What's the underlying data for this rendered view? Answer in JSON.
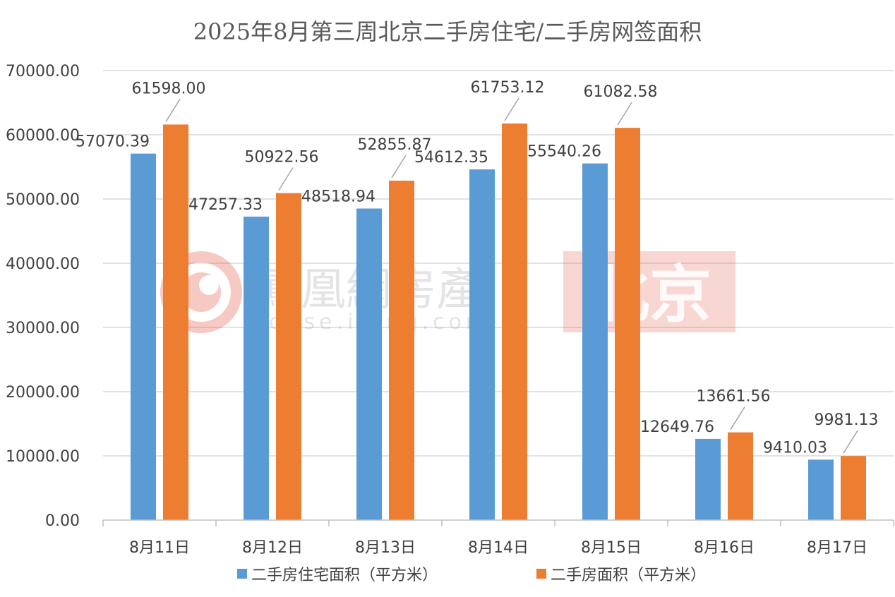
{
  "chart_data": {
    "type": "bar",
    "title": "2025年8月第三周北京二手房住宅/二手房网签面积",
    "categories": [
      "8月11日",
      "8月12日",
      "8月13日",
      "8月14日",
      "8月15日",
      "8月16日",
      "8月17日"
    ],
    "series": [
      {
        "name": "二手房住宅面积（平方米）",
        "color": "#5B9BD5",
        "values": [
          57070.39,
          47257.33,
          48518.94,
          54612.35,
          55540.26,
          12649.76,
          9410.03
        ],
        "labels": [
          "57070.39",
          "47257.33",
          "48518.94",
          "54612.35",
          "55540.26",
          "12649.76",
          "9410.03"
        ]
      },
      {
        "name": "二手房面积（平方米）",
        "color": "#ED7D31",
        "values": [
          61598.0,
          50922.56,
          52855.87,
          61753.12,
          61082.58,
          13661.56,
          9981.13
        ],
        "labels": [
          "61598.00",
          "50922.56",
          "52855.87",
          "61753.12",
          "61082.58",
          "13661.56",
          "9981.13"
        ]
      }
    ],
    "ylim": [
      0,
      70000
    ],
    "yticks": [
      "0.00",
      "10000.00",
      "20000.00",
      "30000.00",
      "40000.00",
      "50000.00",
      "60000.00",
      "70000.00"
    ],
    "grid": true,
    "legend_position": "bottom"
  },
  "watermark": {
    "brand": "鳳凰網房產",
    "domain": "house.ifeng.com",
    "city": "北京",
    "brand_color": "#E0452C"
  }
}
